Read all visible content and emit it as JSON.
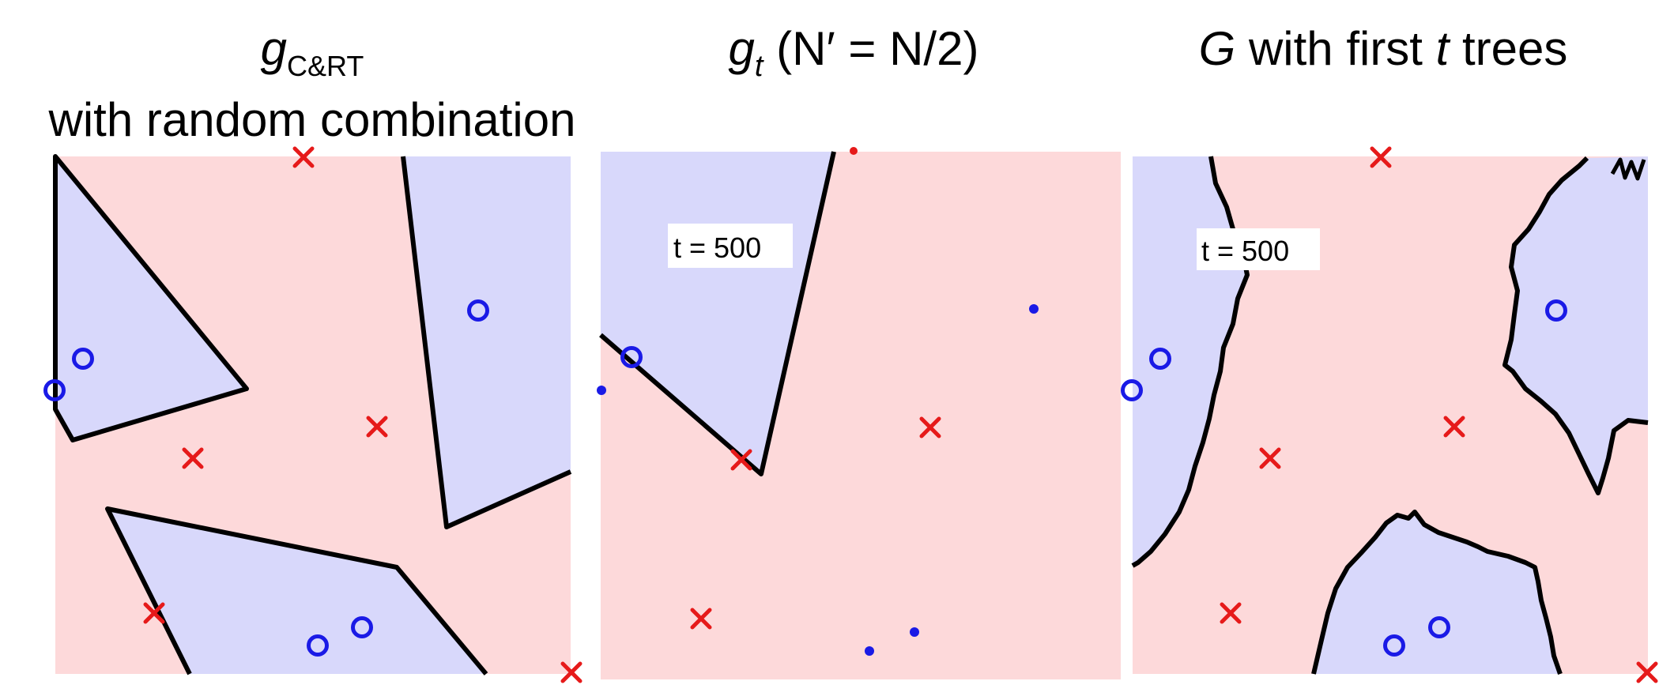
{
  "titles": {
    "left_main": "g",
    "left_sub": "C&RT",
    "left_line2": "with random combination",
    "middle_main": "g",
    "middle_sub": "t",
    "middle_rest": " (N′ = N/2)",
    "right_G": "G",
    "right_mid": " with first ",
    "right_t": "t",
    "right_end": " trees"
  },
  "middle_label": "t = 500",
  "right_label": "t = 500",
  "colors": {
    "region_positive": "#d8d8fb",
    "region_negative": "#fdd9da",
    "circle": "#1a1ae6",
    "cross": "#e61a1a",
    "boundary": "#000000"
  }
}
